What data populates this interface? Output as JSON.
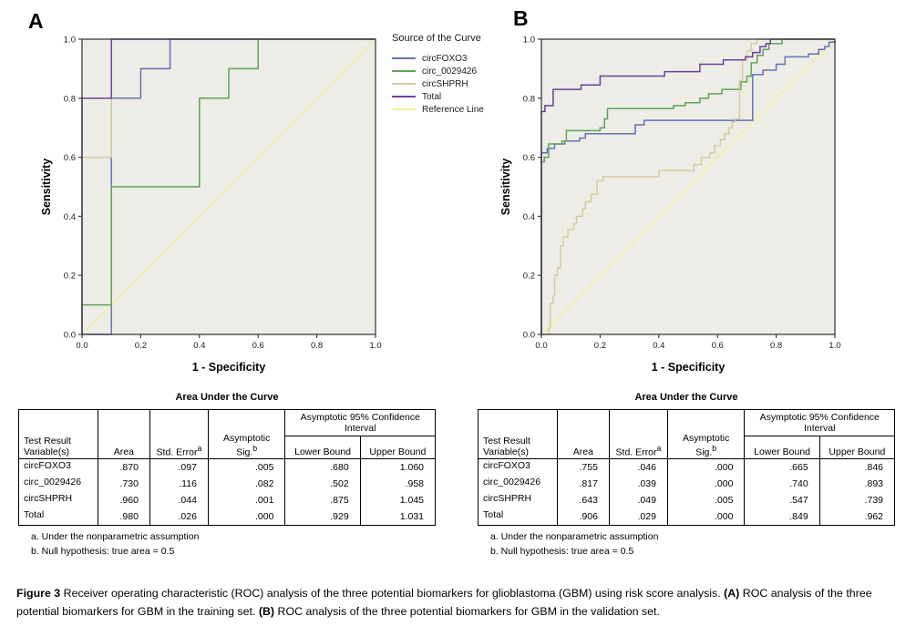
{
  "colors": {
    "plot_bg": "#EDECE6",
    "frame": "#3c3c3c",
    "circFOXO3": "#6672B2",
    "circ_0029426": "#5FA35A",
    "circSHPRH": "#D6CC9E",
    "Total": "#6B4397",
    "reference": "#F1EDA0"
  },
  "legend": {
    "title": "Source of the Curve",
    "items": [
      {
        "label": "circFOXO3",
        "color": "#6672B2"
      },
      {
        "label": "circ_0029426",
        "color": "#5FA35A"
      },
      {
        "label": "circSHPRH",
        "color": "#D6CC9E"
      },
      {
        "label": "Total",
        "color": "#6B4397"
      },
      {
        "label": "Reference Line",
        "color": "#F1EDA0"
      }
    ]
  },
  "chart_data": [
    {
      "type": "line",
      "subtype": "roc-step",
      "panel_label": "A",
      "title": "",
      "xlabel": "1 - Specificity",
      "ylabel": "Sensitivity",
      "xlim": [
        0,
        1
      ],
      "ylim": [
        0,
        1
      ],
      "grid": false,
      "xticks": [
        "0.0",
        "0.2",
        "0.4",
        "0.6",
        "0.8",
        "1.0"
      ],
      "yticks": [
        "0.0",
        "0.2",
        "0.4",
        "0.6",
        "0.8",
        "1.0"
      ],
      "series": [
        {
          "name": "Reference Line",
          "color": "#F1EDA0",
          "points": [
            [
              0,
              0
            ],
            [
              1,
              1
            ]
          ]
        },
        {
          "name": "circFOXO3",
          "color": "#6672B2",
          "points": [
            [
              0,
              0
            ],
            [
              0.1,
              0
            ],
            [
              0.1,
              0.8
            ],
            [
              0.2,
              0.8
            ],
            [
              0.2,
              0.9
            ],
            [
              0.3,
              0.9
            ],
            [
              0.3,
              1
            ],
            [
              1,
              1
            ]
          ]
        },
        {
          "name": "circ_0029426",
          "color": "#5FA35A",
          "points": [
            [
              0,
              0
            ],
            [
              0,
              0.1
            ],
            [
              0.1,
              0.1
            ],
            [
              0.1,
              0.5
            ],
            [
              0.4,
              0.5
            ],
            [
              0.4,
              0.8
            ],
            [
              0.5,
              0.8
            ],
            [
              0.5,
              0.9
            ],
            [
              0.6,
              0.9
            ],
            [
              0.6,
              1
            ],
            [
              1,
              1
            ]
          ]
        },
        {
          "name": "circSHPRH",
          "color": "#D6CC9E",
          "points": [
            [
              0,
              0
            ],
            [
              0,
              0.6
            ],
            [
              0.1,
              0.6
            ],
            [
              0.1,
              1
            ],
            [
              1,
              1
            ]
          ]
        },
        {
          "name": "Total",
          "color": "#6B4397",
          "points": [
            [
              0,
              0
            ],
            [
              0,
              0.8
            ],
            [
              0.1,
              0.8
            ],
            [
              0.1,
              1
            ],
            [
              1,
              1
            ]
          ]
        }
      ]
    },
    {
      "type": "line",
      "subtype": "roc-step",
      "panel_label": "B",
      "title": "",
      "xlabel": "1 - Specificity",
      "ylabel": "Sensitivity",
      "xlim": [
        0,
        1
      ],
      "ylim": [
        0,
        1
      ],
      "grid": false,
      "xticks": [
        "0.0",
        "0.2",
        "0.4",
        "0.6",
        "0.8",
        "1.0"
      ],
      "yticks": [
        "0.0",
        "0.2",
        "0.4",
        "0.6",
        "0.8",
        "1.0"
      ],
      "series": [
        {
          "name": "Reference Line",
          "color": "#F1EDA0",
          "points": [
            [
              0,
              0
            ],
            [
              1,
              1
            ]
          ]
        },
        {
          "name": "circFOXO3",
          "color": "#6672B2",
          "points": [
            [
              0,
              0
            ],
            [
              0,
              0.615
            ],
            [
              0.02,
              0.615
            ],
            [
              0.02,
              0.63
            ],
            [
              0.045,
              0.63
            ],
            [
              0.045,
              0.645
            ],
            [
              0.08,
              0.645
            ],
            [
              0.08,
              0.655
            ],
            [
              0.13,
              0.655
            ],
            [
              0.13,
              0.665
            ],
            [
              0.15,
              0.665
            ],
            [
              0.15,
              0.68
            ],
            [
              0.32,
              0.68
            ],
            [
              0.32,
              0.71
            ],
            [
              0.35,
              0.71
            ],
            [
              0.35,
              0.725
            ],
            [
              0.72,
              0.725
            ],
            [
              0.72,
              0.88
            ],
            [
              0.755,
              0.88
            ],
            [
              0.755,
              0.895
            ],
            [
              0.8,
              0.895
            ],
            [
              0.8,
              0.915
            ],
            [
              0.83,
              0.915
            ],
            [
              0.83,
              0.94
            ],
            [
              0.91,
              0.94
            ],
            [
              0.91,
              0.95
            ],
            [
              0.945,
              0.95
            ],
            [
              0.945,
              0.965
            ],
            [
              0.965,
              0.965
            ],
            [
              0.965,
              0.975
            ],
            [
              0.98,
              0.975
            ],
            [
              0.98,
              0.99
            ],
            [
              1,
              0.99
            ],
            [
              1,
              1
            ]
          ]
        },
        {
          "name": "circ_0029426",
          "color": "#5FA35A",
          "points": [
            [
              0,
              0
            ],
            [
              0,
              0.585
            ],
            [
              0.01,
              0.585
            ],
            [
              0.01,
              0.6
            ],
            [
              0.025,
              0.6
            ],
            [
              0.025,
              0.645
            ],
            [
              0.07,
              0.645
            ],
            [
              0.07,
              0.655
            ],
            [
              0.085,
              0.655
            ],
            [
              0.085,
              0.69
            ],
            [
              0.2,
              0.69
            ],
            [
              0.2,
              0.7
            ],
            [
              0.215,
              0.7
            ],
            [
              0.215,
              0.73
            ],
            [
              0.225,
              0.73
            ],
            [
              0.225,
              0.765
            ],
            [
              0.45,
              0.765
            ],
            [
              0.45,
              0.775
            ],
            [
              0.49,
              0.775
            ],
            [
              0.49,
              0.785
            ],
            [
              0.54,
              0.785
            ],
            [
              0.54,
              0.8
            ],
            [
              0.57,
              0.8
            ],
            [
              0.57,
              0.815
            ],
            [
              0.615,
              0.815
            ],
            [
              0.615,
              0.83
            ],
            [
              0.68,
              0.83
            ],
            [
              0.68,
              0.855
            ],
            [
              0.7,
              0.855
            ],
            [
              0.7,
              0.875
            ],
            [
              0.715,
              0.875
            ],
            [
              0.715,
              0.92
            ],
            [
              0.735,
              0.92
            ],
            [
              0.735,
              0.945
            ],
            [
              0.755,
              0.945
            ],
            [
              0.755,
              0.965
            ],
            [
              0.775,
              0.965
            ],
            [
              0.775,
              0.985
            ],
            [
              0.82,
              0.985
            ],
            [
              0.82,
              1
            ],
            [
              1,
              1
            ]
          ]
        },
        {
          "name": "circSHPRH",
          "color": "#D6CC9E",
          "points": [
            [
              0,
              0
            ],
            [
              0.025,
              0
            ],
            [
              0.025,
              0.02
            ],
            [
              0.03,
              0.02
            ],
            [
              0.03,
              0.105
            ],
            [
              0.04,
              0.105
            ],
            [
              0.04,
              0.13
            ],
            [
              0.045,
              0.13
            ],
            [
              0.045,
              0.2
            ],
            [
              0.055,
              0.2
            ],
            [
              0.055,
              0.225
            ],
            [
              0.065,
              0.225
            ],
            [
              0.065,
              0.3
            ],
            [
              0.075,
              0.3
            ],
            [
              0.075,
              0.33
            ],
            [
              0.09,
              0.33
            ],
            [
              0.09,
              0.355
            ],
            [
              0.11,
              0.355
            ],
            [
              0.11,
              0.375
            ],
            [
              0.12,
              0.375
            ],
            [
              0.12,
              0.4
            ],
            [
              0.14,
              0.4
            ],
            [
              0.14,
              0.425
            ],
            [
              0.15,
              0.425
            ],
            [
              0.15,
              0.45
            ],
            [
              0.17,
              0.45
            ],
            [
              0.17,
              0.475
            ],
            [
              0.19,
              0.475
            ],
            [
              0.19,
              0.52
            ],
            [
              0.21,
              0.52
            ],
            [
              0.21,
              0.535
            ],
            [
              0.4,
              0.535
            ],
            [
              0.4,
              0.555
            ],
            [
              0.52,
              0.555
            ],
            [
              0.52,
              0.575
            ],
            [
              0.545,
              0.575
            ],
            [
              0.545,
              0.6
            ],
            [
              0.575,
              0.6
            ],
            [
              0.575,
              0.615
            ],
            [
              0.59,
              0.615
            ],
            [
              0.59,
              0.64
            ],
            [
              0.61,
              0.64
            ],
            [
              0.61,
              0.66
            ],
            [
              0.625,
              0.66
            ],
            [
              0.625,
              0.68
            ],
            [
              0.64,
              0.68
            ],
            [
              0.64,
              0.7
            ],
            [
              0.65,
              0.7
            ],
            [
              0.65,
              0.72
            ],
            [
              0.66,
              0.72
            ],
            [
              0.66,
              0.73
            ],
            [
              0.675,
              0.73
            ],
            [
              0.675,
              0.86
            ],
            [
              0.685,
              0.86
            ],
            [
              0.685,
              0.93
            ],
            [
              0.7,
              0.93
            ],
            [
              0.7,
              0.96
            ],
            [
              0.715,
              0.96
            ],
            [
              0.715,
              0.985
            ],
            [
              0.735,
              0.985
            ],
            [
              0.735,
              1
            ],
            [
              1,
              1
            ]
          ]
        },
        {
          "name": "Total",
          "color": "#6B4397",
          "points": [
            [
              0,
              0
            ],
            [
              0,
              0.755
            ],
            [
              0.012,
              0.755
            ],
            [
              0.012,
              0.775
            ],
            [
              0.04,
              0.775
            ],
            [
              0.04,
              0.83
            ],
            [
              0.135,
              0.83
            ],
            [
              0.135,
              0.845
            ],
            [
              0.2,
              0.845
            ],
            [
              0.2,
              0.875
            ],
            [
              0.42,
              0.875
            ],
            [
              0.42,
              0.89
            ],
            [
              0.54,
              0.89
            ],
            [
              0.54,
              0.915
            ],
            [
              0.62,
              0.915
            ],
            [
              0.62,
              0.93
            ],
            [
              0.695,
              0.93
            ],
            [
              0.695,
              0.94
            ],
            [
              0.72,
              0.94
            ],
            [
              0.72,
              0.955
            ],
            [
              0.745,
              0.955
            ],
            [
              0.745,
              0.975
            ],
            [
              0.765,
              0.975
            ],
            [
              0.765,
              0.985
            ],
            [
              0.78,
              0.985
            ],
            [
              0.78,
              1
            ],
            [
              1,
              1
            ]
          ]
        }
      ]
    }
  ],
  "tables": [
    {
      "title": "Area Under the Curve",
      "header": {
        "var_line1": "Test Result",
        "var_line2": "Variable(s)",
        "area": "Area",
        "stderr": "Std. Error",
        "stderr_sup": "a",
        "asym1": "Asymptotic",
        "asym2": "Sig.",
        "asym_sup": "b",
        "ci_group": "Asymptotic 95% Confidence Interval",
        "lower": "Lower Bound",
        "upper": "Upper Bound"
      },
      "rows": [
        {
          "name": "circFOXO3",
          "area": ".870",
          "stderr": ".097",
          "sig": ".005",
          "lower": ".680",
          "upper": "1.060"
        },
        {
          "name": "circ_0029426",
          "area": ".730",
          "stderr": ".116",
          "sig": ".082",
          "lower": ".502",
          "upper": ".958"
        },
        {
          "name": "circSHPRH",
          "area": ".960",
          "stderr": ".044",
          "sig": ".001",
          "lower": ".875",
          "upper": "1.045"
        },
        {
          "name": "Total",
          "area": ".980",
          "stderr": ".026",
          "sig": ".000",
          "lower": ".929",
          "upper": "1.031"
        }
      ],
      "footnotes": [
        "a. Under the nonparametric assumption",
        "b. Null hypothesis: true area = 0.5"
      ]
    },
    {
      "title": "Area Under the Curve",
      "header": {
        "var_line1": "Test Result",
        "var_line2": "Variable(s)",
        "area": "Area",
        "stderr": "Std. Error",
        "stderr_sup": "a",
        "asym1": "Asymptotic",
        "asym2": "Sig.",
        "asym_sup": "b",
        "ci_group": "Asymptotic 95% Confidence Interval",
        "lower": "Lower Bound",
        "upper": "Upper Bound"
      },
      "rows": [
        {
          "name": "circFOXO3",
          "area": ".755",
          "stderr": ".046",
          "sig": ".000",
          "lower": ".665",
          "upper": ".846"
        },
        {
          "name": "circ_0029426",
          "area": ".817",
          "stderr": ".039",
          "sig": ".000",
          "lower": ".740",
          "upper": ".893"
        },
        {
          "name": "circSHPRH",
          "area": ".643",
          "stderr": ".049",
          "sig": ".005",
          "lower": ".547",
          "upper": ".739"
        },
        {
          "name": "Total",
          "area": ".906",
          "stderr": ".029",
          "sig": ".000",
          "lower": ".849",
          "upper": ".962"
        }
      ],
      "footnotes": [
        "a. Under the nonparametric assumption",
        "b. Null hypothesis: true area = 0.5"
      ]
    }
  ],
  "caption": {
    "fig_label": "Figure 3",
    "part1": " Receiver operating characteristic (ROC) analysis of the three potential biomarkers for glioblastoma (GBM) using risk score analysis. ",
    "a_label": "(A)",
    "part2": " ROC analysis of the three potential biomarkers for GBM in the training set. ",
    "b_label": "(B)",
    "part3": " ROC analysis of the three potential biomarkers for GBM in the validation set."
  }
}
